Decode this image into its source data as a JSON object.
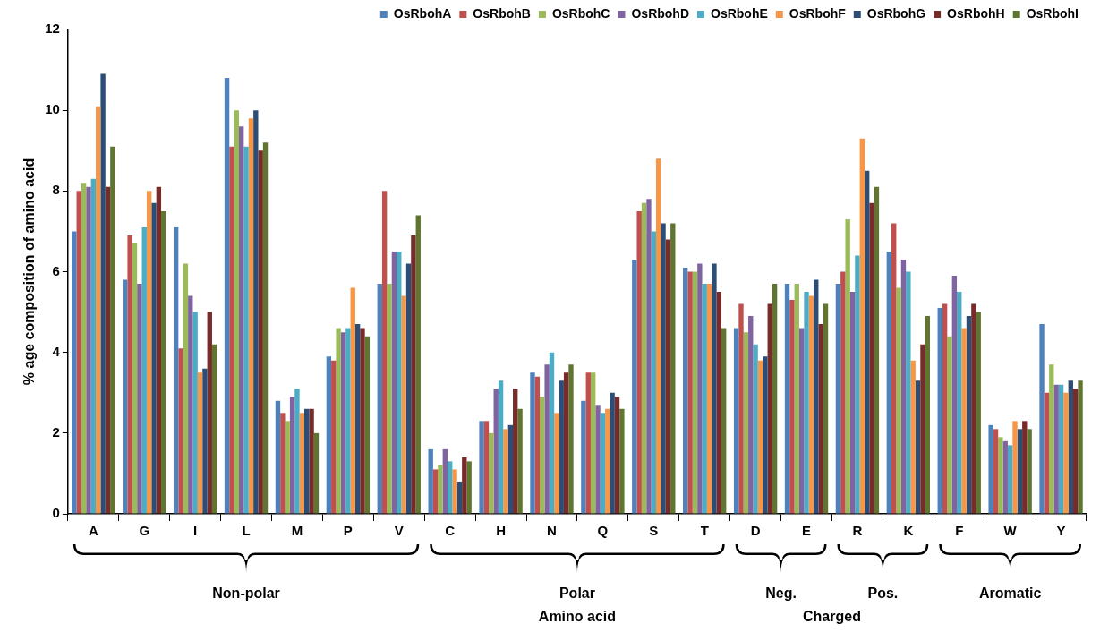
{
  "chart_data": {
    "type": "bar",
    "ylabel": "% age composition of amino acid",
    "categories": [
      "A",
      "G",
      "I",
      "L",
      "M",
      "P",
      "V",
      "C",
      "H",
      "N",
      "Q",
      "S",
      "T",
      "D",
      "E",
      "R",
      "K",
      "F",
      "W",
      "Y"
    ],
    "ylim": [
      0,
      12
    ],
    "yticks": [
      0,
      2,
      4,
      6,
      8,
      10,
      12
    ],
    "grid": false,
    "legend": "top right",
    "annotations": [
      "Non-polar",
      "Polar",
      "Neg.",
      "Pos.",
      "Aromatic",
      "Charged",
      "Amino acid"
    ],
    "series": [
      {
        "name": "OsRbohA",
        "color": "#4f81bd",
        "values": [
          7.0,
          5.8,
          7.1,
          10.8,
          2.8,
          3.9,
          5.7,
          1.6,
          2.3,
          3.5,
          2.8,
          6.3,
          6.1,
          4.6,
          5.7,
          5.7,
          6.5,
          5.1,
          2.2,
          4.7
        ]
      },
      {
        "name": "OsRbohB",
        "color": "#c0504d",
        "values": [
          8.0,
          6.9,
          4.1,
          9.1,
          2.5,
          3.8,
          8.0,
          1.1,
          2.3,
          3.4,
          3.5,
          7.5,
          6.0,
          5.2,
          5.3,
          6.0,
          7.2,
          5.2,
          2.1,
          3.0
        ]
      },
      {
        "name": "OsRbohC",
        "color": "#9bbb59",
        "values": [
          8.2,
          6.7,
          6.2,
          10.0,
          2.3,
          4.6,
          5.7,
          1.2,
          2.0,
          2.9,
          3.5,
          7.7,
          6.0,
          4.5,
          5.7,
          7.3,
          5.6,
          4.4,
          1.9,
          3.7
        ]
      },
      {
        "name": "OsRbohD",
        "color": "#8064a2",
        "values": [
          8.1,
          5.7,
          5.4,
          9.6,
          2.9,
          4.5,
          6.5,
          1.6,
          3.1,
          3.7,
          2.7,
          7.8,
          6.2,
          4.9,
          4.6,
          5.5,
          6.3,
          5.9,
          1.8,
          3.2
        ]
      },
      {
        "name": "OsRbohE",
        "color": "#4bacc6",
        "values": [
          8.3,
          7.1,
          5.0,
          9.1,
          3.1,
          4.6,
          6.5,
          1.3,
          3.3,
          4.0,
          2.5,
          7.0,
          5.7,
          4.2,
          5.5,
          6.4,
          6.0,
          5.5,
          1.7,
          3.2
        ]
      },
      {
        "name": "OsRbohF",
        "color": "#f79646",
        "values": [
          10.1,
          8.0,
          3.5,
          9.8,
          2.5,
          5.6,
          5.4,
          1.1,
          2.1,
          2.5,
          2.6,
          8.8,
          5.7,
          3.8,
          5.4,
          9.3,
          3.8,
          4.6,
          2.3,
          3.0
        ]
      },
      {
        "name": "OsRbohG",
        "color": "#2c4d75",
        "values": [
          10.9,
          7.7,
          3.6,
          10.0,
          2.6,
          4.7,
          6.2,
          0.8,
          2.2,
          3.3,
          3.0,
          7.2,
          6.2,
          3.9,
          5.8,
          8.5,
          3.3,
          4.9,
          2.1,
          3.3
        ]
      },
      {
        "name": "OsRbohH",
        "color": "#772c2a",
        "values": [
          8.1,
          8.1,
          5.0,
          9.0,
          2.6,
          4.6,
          6.9,
          1.4,
          3.1,
          3.5,
          2.9,
          6.8,
          5.5,
          5.2,
          4.7,
          7.7,
          4.2,
          5.2,
          2.3,
          3.1
        ]
      },
      {
        "name": "OsRbohI",
        "color": "#5f7530",
        "values": [
          9.1,
          7.5,
          4.2,
          9.2,
          2.0,
          4.4,
          7.4,
          1.3,
          2.6,
          3.7,
          2.6,
          7.2,
          4.6,
          5.7,
          5.2,
          8.1,
          4.9,
          5.0,
          2.1,
          3.3
        ]
      }
    ]
  }
}
